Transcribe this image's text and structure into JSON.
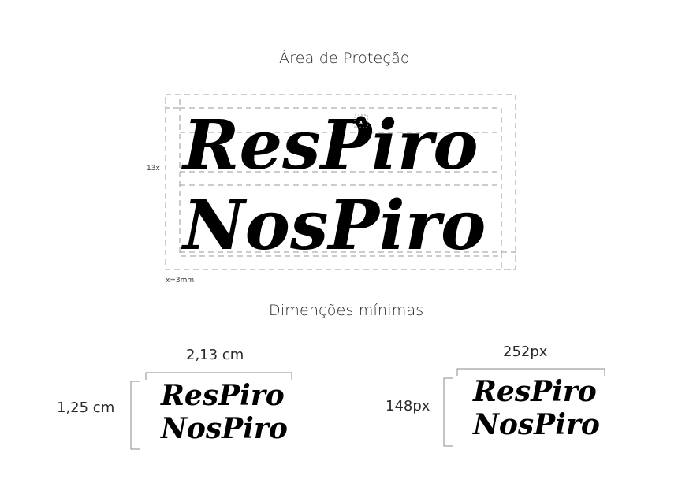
{
  "protection_area": {
    "title": "Área de Proteção",
    "height_label": "13x",
    "unit_label": "x=3mm",
    "unit_marker": "x"
  },
  "minimum_dimensions": {
    "title": "Dimenções mínimas",
    "print": {
      "width_label": "2,13 cm",
      "height_label": "1,25 cm"
    },
    "screen": {
      "width_label": "252px",
      "height_label": "148px"
    }
  },
  "logo": {
    "line1": "ResPiro",
    "line2": "NosPiro"
  },
  "colors": {
    "ink": "#000000",
    "guide": "#9a9a9a"
  }
}
